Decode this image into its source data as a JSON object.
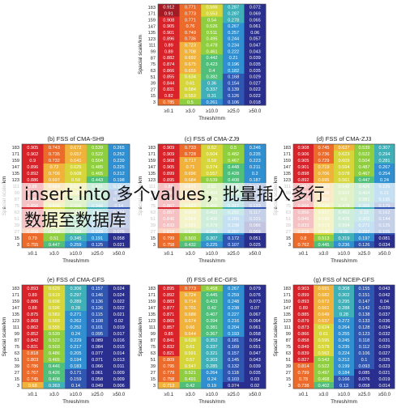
{
  "overlay_text": {
    "line1": "insert into 多个values，批量插入多行",
    "line2": "数据至数据库"
  },
  "colors": [
    "#2a2f8f",
    "#2f56b0",
    "#2f8fd0",
    "#3fb0b8",
    "#4fbf7a",
    "#8fcf3f",
    "#d6d63a",
    "#f0b23a",
    "#ec6b2a",
    "#d9232a",
    "#a31b25"
  ],
  "chart_data": [
    {
      "type": "heatmap",
      "title": "",
      "xlabel": "Thresh/mm",
      "ylabel": "Spacial scale/km",
      "x": [
        "≥0.1",
        "≥3.0",
        "≥10.0",
        "≥25.0",
        "≥50.0"
      ],
      "y": [
        "183",
        "171",
        "159",
        "147",
        "135",
        "123",
        "111",
        "99",
        "87",
        "75",
        "63",
        "51",
        "39",
        "27",
        "15",
        "3"
      ],
      "values": [
        [
          0.912,
          0.771,
          0.566,
          0.287,
          0.072
        ],
        [
          0.91,
          0.773,
          0.553,
          0.287,
          0.069
        ],
        [
          0.908,
          0.771,
          0.54,
          0.278,
          0.065
        ],
        [
          0.905,
          0.76,
          0.526,
          0.267,
          0.061
        ],
        [
          0.901,
          0.749,
          0.511,
          0.257,
          0.06
        ],
        [
          0.896,
          0.736,
          0.495,
          0.244,
          0.057
        ],
        [
          0.89,
          0.723,
          0.478,
          0.234,
          0.047
        ],
        [
          0.89,
          0.708,
          0.461,
          0.222,
          0.043
        ],
        [
          0.882,
          0.692,
          0.442,
          0.21,
          0.039
        ],
        [
          0.874,
          0.675,
          0.423,
          0.196,
          0.035
        ],
        [
          0.866,
          0.655,
          0.4,
          0.182,
          0.035
        ],
        [
          0.855,
          0.634,
          0.382,
          0.168,
          0.029
        ],
        [
          0.844,
          0.61,
          0.36,
          0.154,
          0.027
        ],
        [
          0.831,
          0.584,
          0.337,
          0.139,
          0.022
        ],
        [
          0.82,
          0.553,
          0.31,
          0.126,
          0.022
        ],
        [
          0.785,
          0.5,
          0.261,
          0.106,
          0.018
        ]
      ]
    },
    {
      "type": "heatmap",
      "title": "(b) FSS of CMA-SH9",
      "xlabel": "Thresh/mm",
      "ylabel": "Spacial scale/km",
      "x": [
        "≥0.1",
        "≥3.0",
        "≥10.0",
        "≥25.0",
        "≥50.0"
      ],
      "y": [
        "183",
        "171",
        "159",
        "147",
        "135",
        "123",
        "111",
        "99",
        "87",
        "75",
        "63",
        "51",
        "39",
        "27",
        "15",
        "3"
      ],
      "values": [
        [
          0.905,
          0.743,
          0.672,
          0.539,
          0.265
        ],
        [
          0.902,
          0.735,
          0.657,
          0.522,
          0.252
        ],
        [
          0.9,
          0.732,
          0.641,
          0.504,
          0.239
        ],
        [
          0.896,
          0.72,
          0.625,
          0.485,
          0.225
        ],
        [
          0.892,
          0.709,
          0.608,
          0.465,
          0.212
        ],
        [
          0.886,
          0.697,
          0.59,
          0.443,
          0.198
        ],
        [
          0.88,
          0.684,
          0.571,
          0.421,
          0.184
        ],
        [
          0.873,
          0.669,
          0.551,
          0.398,
          0.17
        ],
        [
          0.865,
          0.654,
          0.528,
          0.373,
          0.155
        ],
        [
          0.856,
          0.636,
          0.506,
          0.348,
          0.14
        ],
        [
          0.846,
          0.617,
          0.48,
          0.32,
          0.124
        ],
        [
          0.835,
          0.595,
          0.452,
          0.29,
          0.108
        ],
        [
          0.822,
          0.572,
          0.423,
          0.262,
          0.093
        ],
        [
          0.808,
          0.544,
          0.388,
          0.229,
          0.075
        ],
        [
          0.79,
          0.51,
          0.345,
          0.191,
          0.058
        ],
        [
          0.755,
          0.447,
          0.259,
          0.125,
          0.021
        ]
      ]
    },
    {
      "type": "heatmap",
      "title": "(c) FSS of CMA-ZJ9",
      "xlabel": "Thresh/mm",
      "ylabel": "Spacial scale/km",
      "x": [
        "≥0.1",
        "≥3.0",
        "≥10.0",
        "≥25.0",
        "≥50.0"
      ],
      "y": [
        "183",
        "171",
        "159",
        "147",
        "135",
        "123",
        "111",
        "99",
        "87",
        "75",
        "63",
        "51",
        "39",
        "27",
        "15",
        "3"
      ],
      "values": [
        [
          0.909,
          0.733,
          0.62,
          0.5,
          0.246
        ],
        [
          0.909,
          0.728,
          0.604,
          0.482,
          0.235
        ],
        [
          0.908,
          0.717,
          0.59,
          0.467,
          0.223
        ],
        [
          0.905,
          0.71,
          0.574,
          0.448,
          0.211
        ],
        [
          0.899,
          0.696,
          0.557,
          0.428,
          0.2
        ],
        [
          0.895,
          0.684,
          0.539,
          0.408,
          0.187
        ],
        [
          0.89,
          0.671,
          0.52,
          0.385,
          0.174
        ],
        [
          0.884,
          0.656,
          0.499,
          0.364,
          0.161
        ],
        [
          0.876,
          0.64,
          0.478,
          0.34,
          0.147
        ],
        [
          0.867,
          0.623,
          0.455,
          0.317,
          0.133
        ],
        [
          0.857,
          0.604,
          0.432,
          0.292,
          0.117
        ],
        [
          0.846,
          0.584,
          0.406,
          0.266,
          0.101
        ],
        [
          0.833,
          0.561,
          0.378,
          0.238,
          0.086
        ],
        [
          0.818,
          0.535,
          0.346,
          0.207,
          0.069
        ],
        [
          0.799,
          0.503,
          0.307,
          0.172,
          0.051
        ],
        [
          0.758,
          0.432,
          0.225,
          0.107,
          0.025
        ]
      ]
    },
    {
      "type": "heatmap",
      "title": "(d) FSS of CMA-ZJ3",
      "xlabel": "Thresh/mm",
      "ylabel": "Spacial scale/km",
      "x": [
        "≥0.1",
        "≥3.0",
        "≥10.0",
        "≥25.0",
        "≥50.0"
      ],
      "y": [
        "183",
        "171",
        "159",
        "147",
        "135",
        "123",
        "111",
        "99",
        "87",
        "75",
        "63",
        "51",
        "39",
        "27",
        "15",
        "3"
      ],
      "values": [
        [
          0.908,
          0.745,
          0.637,
          0.539,
          0.307
        ],
        [
          0.906,
          0.736,
          0.623,
          0.522,
          0.294
        ],
        [
          0.905,
          0.729,
          0.609,
          0.504,
          0.281
        ],
        [
          0.901,
          0.719,
          0.594,
          0.487,
          0.267
        ],
        [
          0.898,
          0.706,
          0.578,
          0.467,
          0.254
        ],
        [
          0.892,
          0.695,
          0.561,
          0.447,
          0.24
        ],
        [
          0.887,
          0.682,
          0.542,
          0.426,
          0.225
        ],
        [
          0.881,
          0.668,
          0.522,
          0.404,
          0.21
        ],
        [
          0.874,
          0.652,
          0.5,
          0.381,
          0.195
        ],
        [
          0.866,
          0.636,
          0.478,
          0.356,
          0.179
        ],
        [
          0.856,
          0.617,
          0.452,
          0.33,
          0.162
        ],
        [
          0.846,
          0.596,
          0.425,
          0.302,
          0.144
        ],
        [
          0.833,
          0.573,
          0.394,
          0.271,
          0.125
        ],
        [
          0.818,
          0.546,
          0.36,
          0.237,
          0.105
        ],
        [
          0.8,
          0.513,
          0.319,
          0.197,
          0.081
        ],
        [
          0.762,
          0.445,
          0.236,
          0.126,
          0.034
        ]
      ]
    },
    {
      "type": "heatmap",
      "title": "(e) FSS of CMA-GFS",
      "xlabel": "Thresh/mm",
      "ylabel": "Spacial scale/km",
      "x": [
        "≥0.1",
        "≥3.0",
        "≥10.0",
        "≥25.0",
        "≥50.0"
      ],
      "y": [
        "183",
        "171",
        "159",
        "147",
        "135",
        "123",
        "111",
        "99",
        "87",
        "75",
        "63",
        "51",
        "39",
        "27",
        "15",
        "3"
      ],
      "values": [
        [
          0.893,
          0.629,
          0.306,
          0.157,
          0.024
        ],
        [
          0.89,
          0.619,
          0.297,
          0.146,
          0.024
        ],
        [
          0.886,
          0.608,
          0.289,
          0.136,
          0.022
        ],
        [
          0.88,
          0.596,
          0.28,
          0.126,
          0.022
        ],
        [
          0.875,
          0.583,
          0.271,
          0.115,
          0.021
        ],
        [
          0.868,
          0.569,
          0.262,
          0.108,
          0.02
        ],
        [
          0.862,
          0.555,
          0.252,
          0.101,
          0.019
        ],
        [
          0.852,
          0.539,
          0.24,
          0.095,
          0.017
        ],
        [
          0.842,
          0.522,
          0.229,
          0.089,
          0.016
        ],
        [
          0.831,
          0.503,
          0.217,
          0.084,
          0.015
        ],
        [
          0.818,
          0.486,
          0.205,
          0.077,
          0.014
        ],
        [
          0.803,
          0.465,
          0.194,
          0.071,
          0.013
        ],
        [
          0.786,
          0.446,
          0.183,
          0.066,
          0.011
        ],
        [
          0.767,
          0.426,
          0.171,
          0.061,
          0.009
        ],
        [
          0.745,
          0.408,
          0.159,
          0.058,
          0.009
        ],
        [
          0.68,
          0.363,
          0.14,
          0.049,
          0.006
        ]
      ]
    },
    {
      "type": "heatmap",
      "title": "(f) FSS of EC-GFS",
      "xlabel": "Thresh/mm",
      "ylabel": "Spacial scale/km",
      "x": [
        "≥0.1",
        "≥3.0",
        "≥10.0",
        "≥25.0",
        "≥50.0"
      ],
      "y": [
        "183",
        "171",
        "159",
        "147",
        "135",
        "123",
        "111",
        "99",
        "87",
        "75",
        "63",
        "51",
        "39",
        "27",
        "15",
        "3"
      ],
      "values": [
        [
          0.895,
          0.773,
          0.458,
          0.267,
          0.079
        ],
        [
          0.892,
          0.724,
          0.445,
          0.259,
          0.076
        ],
        [
          0.883,
          0.714,
          0.433,
          0.248,
          0.073
        ],
        [
          0.877,
          0.701,
          0.42,
          0.238,
          0.07
        ],
        [
          0.871,
          0.688,
          0.407,
          0.227,
          0.067
        ],
        [
          0.865,
          0.674,
          0.394,
          0.216,
          0.064
        ],
        [
          0.857,
          0.66,
          0.381,
          0.204,
          0.061
        ],
        [
          0.85,
          0.644,
          0.367,
          0.193,
          0.058
        ],
        [
          0.841,
          0.628,
          0.352,
          0.181,
          0.054
        ],
        [
          0.832,
          0.61,
          0.337,
          0.169,
          0.051
        ],
        [
          0.821,
          0.591,
          0.321,
          0.157,
          0.047
        ],
        [
          0.809,
          0.57,
          0.303,
          0.145,
          0.043
        ],
        [
          0.795,
          0.547,
          0.285,
          0.132,
          0.039
        ],
        [
          0.779,
          0.521,
          0.264,
          0.118,
          0.035
        ],
        [
          0.758,
          0.491,
          0.24,
          0.103,
          0.03
        ],
        [
          0.713,
          0.42,
          0.19,
          0.074,
          0.02
        ]
      ]
    },
    {
      "type": "heatmap",
      "title": "(g) FSS of NCEP-GFS",
      "xlabel": "Thresh/mm",
      "ylabel": "Spacial scale/km",
      "x": [
        "≥0.1",
        "≥3.0",
        "≥10.0",
        "≥25.0",
        "≥50.0"
      ],
      "y": [
        "183",
        "171",
        "159",
        "147",
        "135",
        "123",
        "111",
        "99",
        "87",
        "75",
        "63",
        "51",
        "39",
        "27",
        "15",
        "3"
      ],
      "values": [
        [
          0.903,
          0.691,
          0.308,
          0.155,
          0.043
        ],
        [
          0.899,
          0.682,
          0.302,
          0.151,
          0.042
        ],
        [
          0.893,
          0.672,
          0.295,
          0.147,
          0.04
        ],
        [
          0.89,
          0.661,
          0.288,
          0.142,
          0.039
        ],
        [
          0.885,
          0.649,
          0.28,
          0.138,
          0.037
        ],
        [
          0.879,
          0.637,
          0.272,
          0.133,
          0.036
        ],
        [
          0.873,
          0.624,
          0.264,
          0.128,
          0.034
        ],
        [
          0.866,
          0.61,
          0.255,
          0.123,
          0.032
        ],
        [
          0.858,
          0.595,
          0.245,
          0.118,
          0.031
        ],
        [
          0.849,
          0.579,
          0.235,
          0.112,
          0.029
        ],
        [
          0.839,
          0.562,
          0.224,
          0.106,
          0.027
        ],
        [
          0.827,
          0.543,
          0.212,
          0.1,
          0.025
        ],
        [
          0.814,
          0.522,
          0.199,
          0.093,
          0.023
        ],
        [
          0.799,
          0.497,
          0.184,
          0.085,
          0.021
        ],
        [
          0.78,
          0.468,
          0.166,
          0.076,
          0.019
        ],
        [
          0.738,
          0.402,
          0.13,
          0.058,
          0.014
        ]
      ]
    }
  ]
}
